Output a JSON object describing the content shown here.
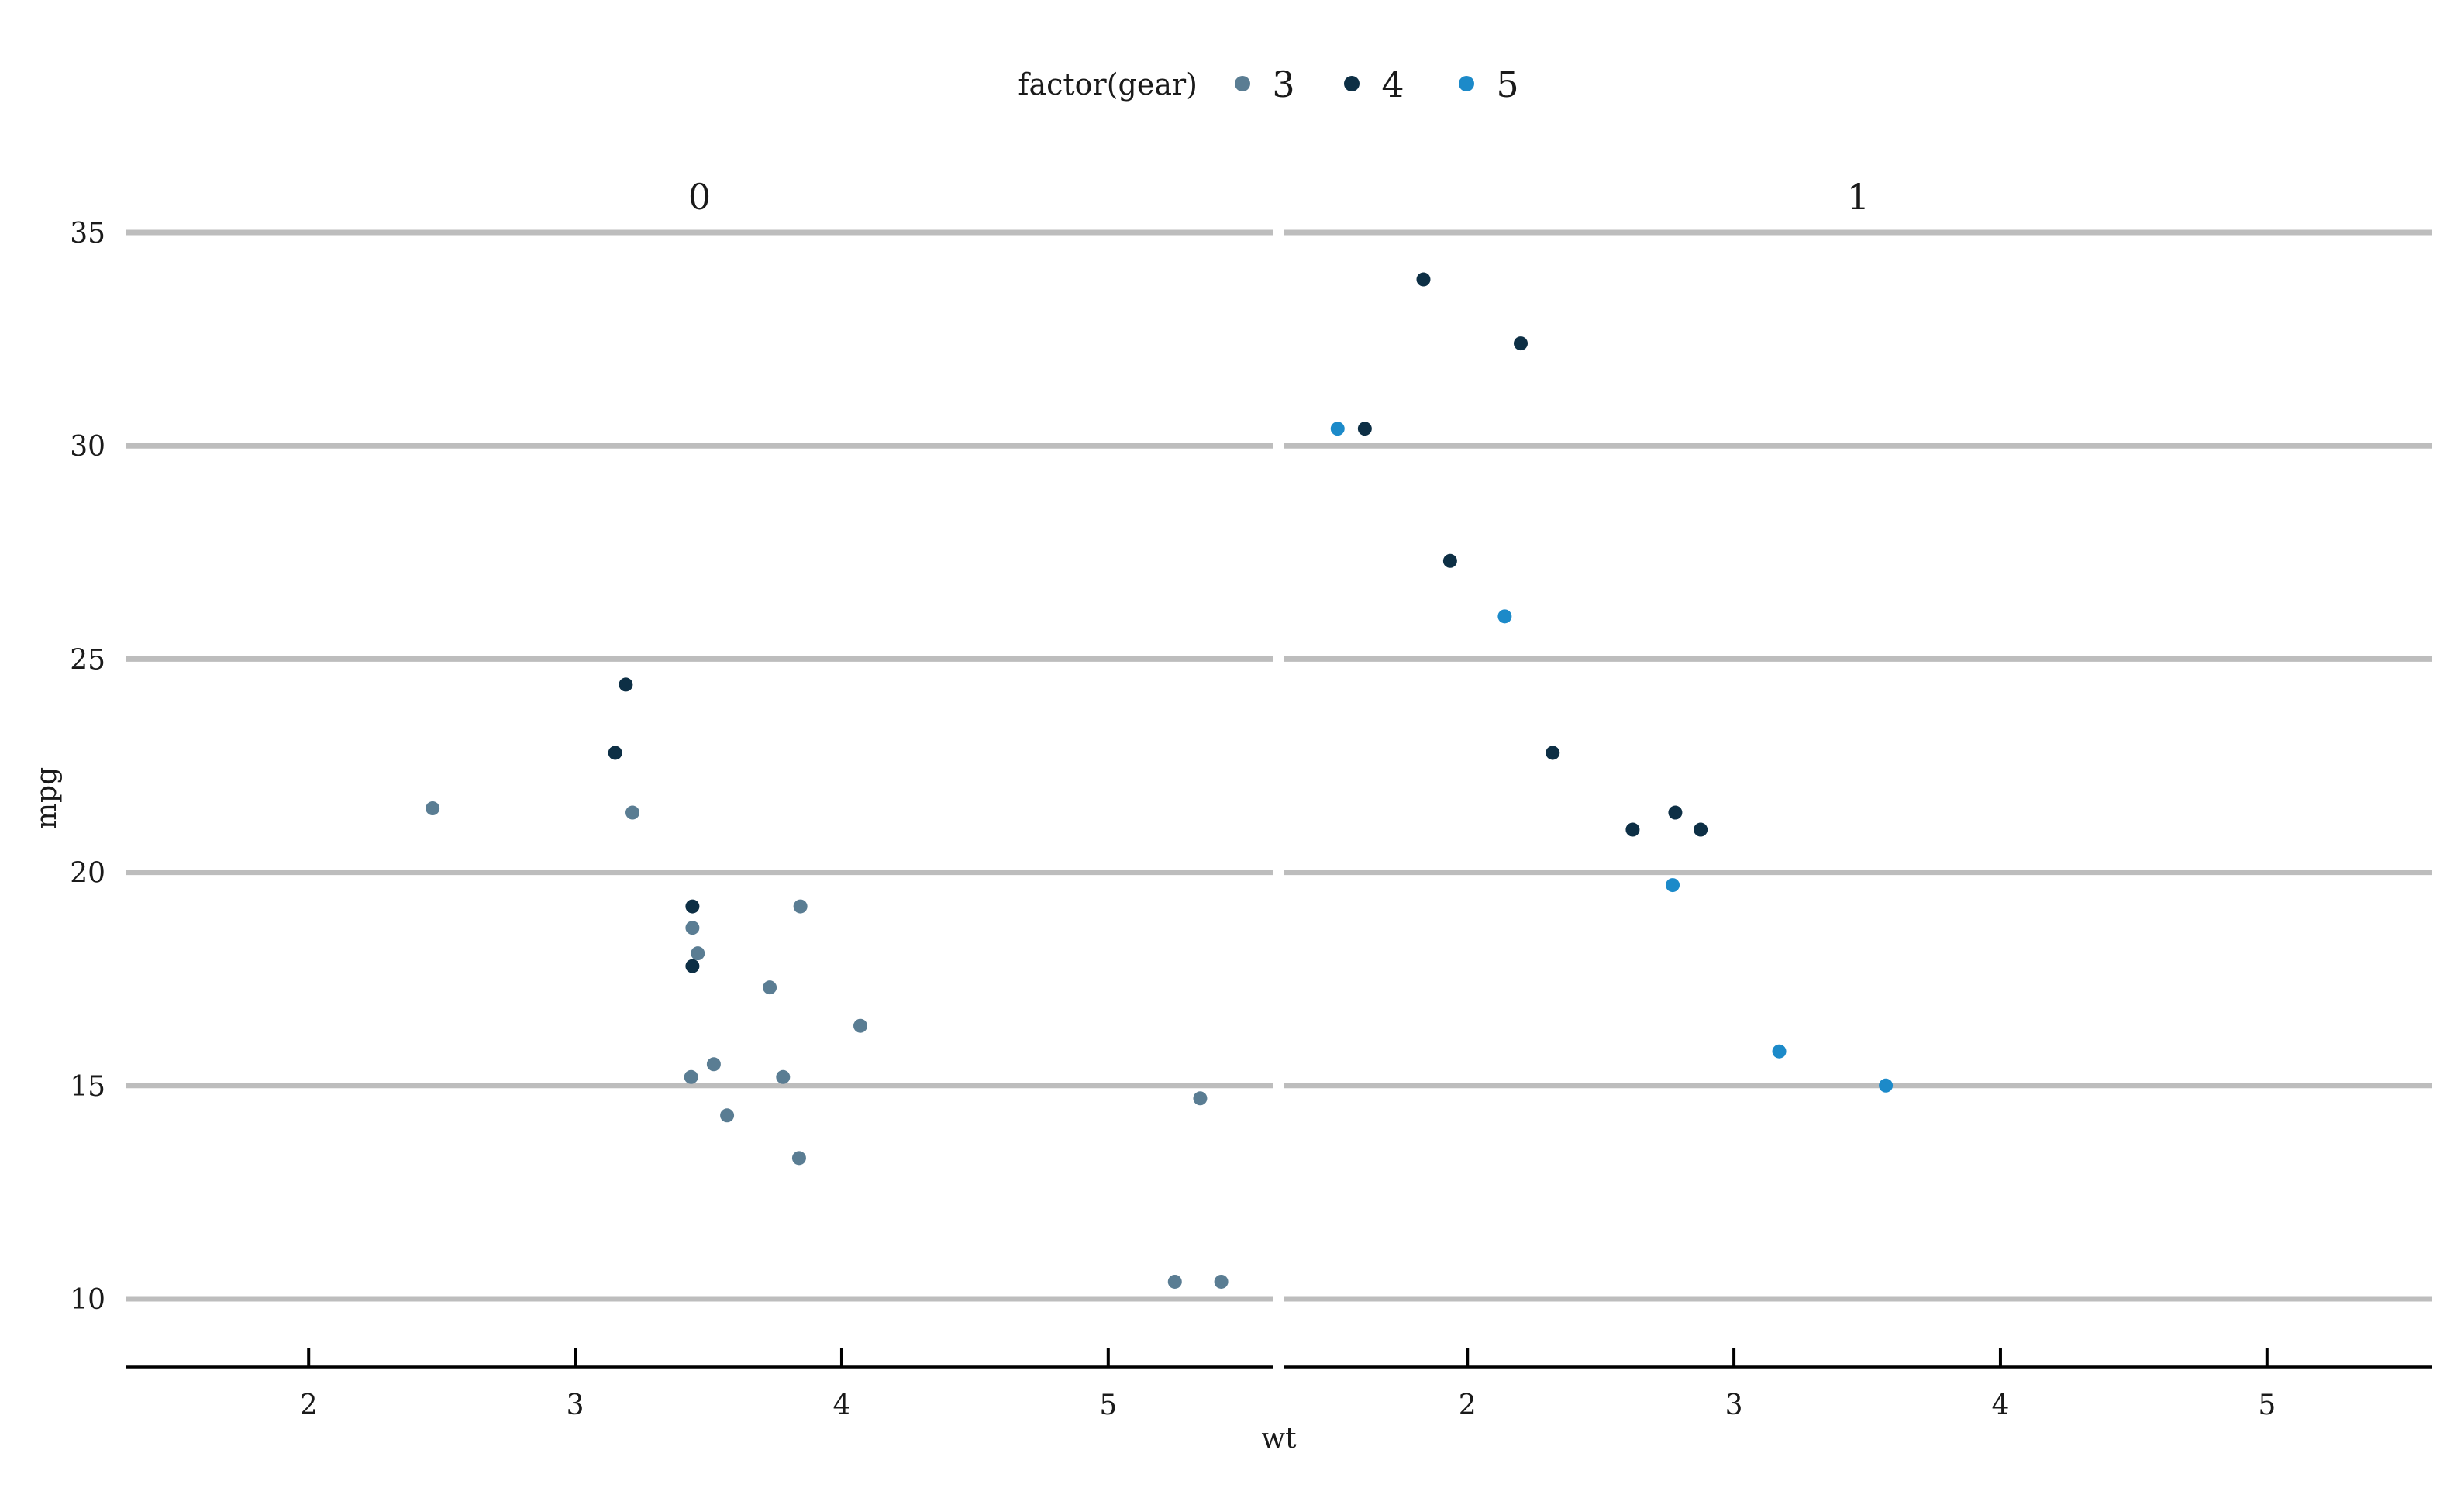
{
  "chart_data": {
    "type": "scatter",
    "xlabel": "wt",
    "ylabel": "mpg",
    "xlim": [
      1.313,
      5.62
    ],
    "ylim": [
      9.2,
      35.0
    ],
    "x_ticks": [
      2,
      3,
      4,
      5
    ],
    "y_ticks": [
      10,
      15,
      20,
      25,
      30,
      35
    ],
    "grid": "horizontal major",
    "legend": {
      "title": "factor(gear)",
      "position": "top",
      "entries": [
        "3",
        "4",
        "5"
      ]
    },
    "colors": {
      "3": "#5a7d93",
      "4": "#0d2f45",
      "5": "#1c8ac9"
    },
    "facets": [
      {
        "label": "0",
        "series": [
          {
            "name": "3",
            "points": [
              [
                2.465,
                21.5
              ],
              [
                3.215,
                21.4
              ],
              [
                3.44,
                18.7
              ],
              [
                3.46,
                18.1
              ],
              [
                3.57,
                14.3
              ],
              [
                3.73,
                17.3
              ],
              [
                3.78,
                15.2
              ],
              [
                4.07,
                16.4
              ],
              [
                3.435,
                15.2
              ],
              [
                3.52,
                15.5
              ],
              [
                3.84,
                13.3
              ],
              [
                3.845,
                19.2
              ],
              [
                5.25,
                10.4
              ],
              [
                5.424,
                10.4
              ],
              [
                5.345,
                14.7
              ]
            ]
          },
          {
            "name": "4",
            "points": [
              [
                3.19,
                24.4
              ],
              [
                3.15,
                22.8
              ],
              [
                3.44,
                19.2
              ],
              [
                3.44,
                17.8
              ]
            ]
          }
        ]
      },
      {
        "label": "1",
        "series": [
          {
            "name": "4",
            "points": [
              [
                2.62,
                21.0
              ],
              [
                2.875,
                21.0
              ],
              [
                2.32,
                22.8
              ],
              [
                2.2,
                32.4
              ],
              [
                1.615,
                30.4
              ],
              [
                1.835,
                33.9
              ],
              [
                1.935,
                27.3
              ],
              [
                2.78,
                21.4
              ]
            ]
          },
          {
            "name": "5",
            "points": [
              [
                2.14,
                26.0
              ],
              [
                1.513,
                30.4
              ],
              [
                3.17,
                15.8
              ],
              [
                2.77,
                19.7
              ],
              [
                3.57,
                15.0
              ]
            ]
          }
        ]
      }
    ]
  }
}
